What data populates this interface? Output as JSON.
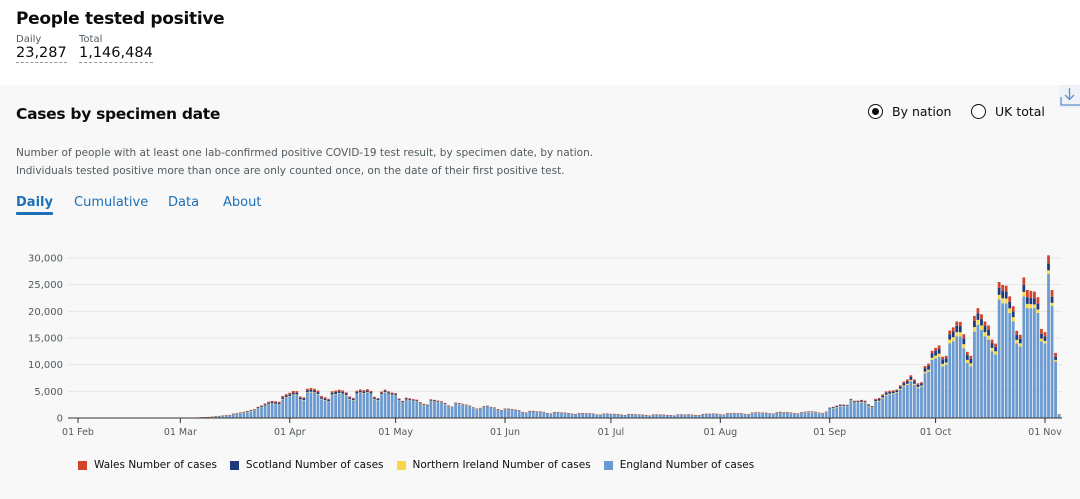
{
  "header": {
    "title": "People tested positive",
    "daily_label": "Daily",
    "daily_value": "23,287",
    "total_label": "Total",
    "total_value": "1,146,484"
  },
  "card": {
    "title": "Cases by specimen date",
    "description_1": "Number of people with at least one lab-confirmed positive COVID-19 test result, by specimen date, by nation.",
    "description_2": "Individuals tested positive more than once are only counted once, on the date of their first positive test.",
    "radios": [
      {
        "label": "By nation",
        "selected": true
      },
      {
        "label": "UK total",
        "selected": false
      }
    ],
    "tabs": [
      {
        "label": "Daily",
        "active": true
      },
      {
        "label": "Cumulative"
      },
      {
        "label": "Data"
      },
      {
        "label": "About"
      }
    ],
    "download_icon": "download-icon"
  },
  "colors": {
    "england": "#6a9ad0",
    "northern_ireland": "#f6d84a",
    "scotland": "#1d3a7a",
    "wales": "#d2432c",
    "accent": "#1d70b8"
  },
  "chart_data": {
    "type": "bar",
    "stacked": true,
    "x_start": "2020-01-30",
    "x_end": "2020-11-05",
    "x_ticks": [
      "01 Feb",
      "01 Mar",
      "01 Apr",
      "01 May",
      "01 Jun",
      "01 Jul",
      "01 Aug",
      "01 Sep",
      "01 Oct",
      "01 Nov"
    ],
    "y_ticks": [
      "0",
      "5,000",
      "10,000",
      "15,000",
      "20,000",
      "25,000",
      "30,000"
    ],
    "ylim": [
      0,
      30000
    ],
    "grid": true,
    "legend_position": "bottom",
    "legend": [
      "Wales Number of cases",
      "Scotland Number of cases",
      "Northern Ireland Number of cases",
      "England Number of cases"
    ],
    "series": [
      {
        "name": "England Number of cases",
        "values": [
          0,
          0,
          0,
          0,
          1,
          0,
          0,
          0,
          0,
          0,
          1,
          0,
          2,
          0,
          0,
          0,
          0,
          0,
          0,
          0,
          0,
          0,
          0,
          0,
          0,
          5,
          3,
          5,
          10,
          15,
          20,
          30,
          40,
          50,
          60,
          80,
          100,
          120,
          150,
          180,
          220,
          280,
          350,
          400,
          450,
          500,
          700,
          800,
          900,
          1000,
          1100,
          1300,
          1400,
          1800,
          2000,
          2300,
          2600,
          2700,
          2600,
          2500,
          3500,
          3800,
          4000,
          4300,
          4300,
          3400,
          3300,
          4700,
          4800,
          4700,
          4400,
          3500,
          3300,
          3100,
          4300,
          4400,
          4600,
          4500,
          4200,
          3500,
          3300,
          4500,
          4700,
          4600,
          4800,
          4500,
          3500,
          3300,
          4400,
          4800,
          4500,
          4300,
          4200,
          3300,
          2900,
          3400,
          3300,
          3200,
          3100,
          2700,
          2400,
          2300,
          3200,
          3100,
          3000,
          2900,
          2600,
          2200,
          2000,
          2700,
          2600,
          2500,
          2400,
          2200,
          1900,
          1700,
          1800,
          2100,
          2200,
          2000,
          1900,
          1600,
          1400,
          1700,
          1700,
          1600,
          1500,
          1400,
          1100,
          1000,
          1300,
          1300,
          1200,
          1200,
          1100,
          900,
          800,
          1100,
          1100,
          1000,
          1000,
          900,
          800,
          700,
          900,
          900,
          850,
          850,
          800,
          650,
          600,
          800,
          800,
          750,
          750,
          700,
          600,
          550,
          700,
          700,
          650,
          650,
          600,
          500,
          450,
          650,
          650,
          600,
          600,
          550,
          500,
          450,
          650,
          650,
          600,
          650,
          600,
          500,
          500,
          700,
          750,
          750,
          800,
          750,
          650,
          600,
          850,
          850,
          850,
          800,
          800,
          700,
          650,
          900,
          950,
          950,
          900,
          900,
          800,
          750,
          1000,
          1050,
          1000,
          1000,
          950,
          850,
          800,
          1000,
          1050,
          1100,
          1100,
          1050,
          900,
          850,
          1000,
          1700,
          1800,
          2000,
          2200,
          2200,
          2200,
          3200,
          2800,
          2800,
          2900,
          2800,
          2200,
          1900,
          3000,
          3100,
          3700,
          4200,
          4400,
          4500,
          4700,
          5300,
          5900,
          6200,
          6900,
          6200,
          5600,
          5900,
          8400,
          8700,
          10900,
          11200,
          11500,
          9700,
          10000,
          14000,
          14400,
          15300,
          15300,
          13100,
          10300,
          9700,
          16200,
          17500,
          16500,
          15300,
          14700,
          12500,
          11900,
          22200,
          21500,
          21500,
          19700,
          18100,
          14000,
          13400,
          22800,
          20600,
          20600,
          20600,
          19700,
          14400,
          14000,
          27000,
          21000,
          10600,
          600
        ]
      },
      {
        "name": "Northern Ireland Number of cases",
        "values": [
          0,
          0,
          0,
          0,
          0,
          0,
          0,
          0,
          0,
          0,
          0,
          0,
          0,
          0,
          0,
          0,
          0,
          0,
          0,
          0,
          0,
          0,
          0,
          0,
          0,
          0,
          0,
          0,
          0,
          0,
          0,
          0,
          0,
          0,
          0,
          0,
          0,
          1,
          1,
          2,
          3,
          4,
          5,
          6,
          8,
          10,
          12,
          15,
          18,
          20,
          25,
          30,
          35,
          40,
          45,
          50,
          55,
          60,
          65,
          70,
          80,
          90,
          100,
          110,
          100,
          90,
          80,
          110,
          120,
          110,
          100,
          90,
          80,
          70,
          100,
          110,
          100,
          95,
          90,
          80,
          70,
          90,
          95,
          90,
          85,
          80,
          70,
          60,
          80,
          75,
          70,
          65,
          60,
          50,
          40,
          55,
          50,
          45,
          40,
          35,
          30,
          25,
          40,
          35,
          30,
          28,
          25,
          20,
          18,
          25,
          22,
          20,
          18,
          15,
          12,
          10,
          12,
          15,
          12,
          10,
          8,
          6,
          5,
          8,
          8,
          7,
          6,
          5,
          4,
          3,
          6,
          6,
          5,
          5,
          4,
          3,
          2,
          5,
          5,
          4,
          4,
          3,
          2,
          2,
          4,
          4,
          3,
          3,
          2,
          2,
          2,
          4,
          4,
          4,
          4,
          3,
          3,
          2,
          4,
          4,
          4,
          3,
          3,
          2,
          2,
          4,
          4,
          4,
          4,
          3,
          2,
          2,
          4,
          4,
          4,
          5,
          4,
          3,
          3,
          6,
          8,
          8,
          10,
          8,
          6,
          5,
          15,
          20,
          25,
          22,
          20,
          15,
          12,
          25,
          30,
          30,
          28,
          25,
          20,
          18,
          35,
          40,
          38,
          35,
          30,
          25,
          20,
          40,
          45,
          50,
          48,
          45,
          40,
          35,
          50,
          60,
          70,
          80,
          90,
          80,
          70,
          100,
          110,
          120,
          130,
          120,
          100,
          90,
          130,
          140,
          150,
          160,
          150,
          140,
          130,
          180,
          200,
          220,
          240,
          220,
          200,
          180,
          300,
          350,
          400,
          500,
          550,
          450,
          400,
          700,
          750,
          800,
          780,
          750,
          600,
          550,
          850,
          900,
          850,
          800,
          750,
          650,
          600,
          900,
          950,
          900,
          850,
          800,
          650,
          600,
          850,
          800,
          750,
          700,
          650,
          500,
          450,
          700,
          600,
          300,
          20
        ]
      },
      {
        "name": "Scotland Number of cases",
        "values": [
          0,
          0,
          0,
          0,
          0,
          0,
          0,
          0,
          0,
          0,
          0,
          0,
          0,
          0,
          0,
          0,
          0,
          0,
          0,
          0,
          0,
          0,
          0,
          0,
          0,
          0,
          0,
          0,
          0,
          0,
          0,
          0,
          0,
          0,
          1,
          2,
          3,
          5,
          8,
          10,
          15,
          20,
          25,
          30,
          40,
          50,
          60,
          70,
          80,
          90,
          100,
          110,
          120,
          150,
          170,
          200,
          220,
          240,
          250,
          260,
          300,
          320,
          350,
          360,
          350,
          300,
          280,
          380,
          390,
          380,
          360,
          300,
          280,
          250,
          350,
          360,
          340,
          330,
          300,
          260,
          230,
          300,
          310,
          300,
          290,
          280,
          230,
          200,
          260,
          250,
          240,
          230,
          220,
          180,
          150,
          200,
          190,
          180,
          170,
          140,
          120,
          110,
          160,
          150,
          140,
          130,
          110,
          90,
          80,
          100,
          90,
          80,
          70,
          60,
          50,
          40,
          50,
          60,
          50,
          45,
          40,
          30,
          25,
          30,
          25,
          25,
          20,
          20,
          15,
          10,
          15,
          15,
          15,
          12,
          10,
          8,
          5,
          10,
          10,
          8,
          8,
          6,
          5,
          4,
          6,
          6,
          5,
          5,
          4,
          3,
          3,
          5,
          5,
          5,
          5,
          4,
          3,
          3,
          5,
          5,
          5,
          5,
          4,
          3,
          3,
          5,
          6,
          6,
          6,
          5,
          4,
          3,
          10,
          10,
          15,
          15,
          12,
          8,
          6,
          15,
          20,
          20,
          25,
          20,
          15,
          12,
          40,
          50,
          60,
          55,
          50,
          40,
          30,
          50,
          60,
          55,
          50,
          45,
          40,
          35,
          50,
          55,
          50,
          50,
          40,
          35,
          30,
          50,
          60,
          70,
          80,
          70,
          60,
          50,
          100,
          150,
          170,
          180,
          190,
          170,
          150,
          200,
          220,
          230,
          240,
          220,
          200,
          180,
          300,
          320,
          350,
          380,
          360,
          340,
          320,
          400,
          450,
          500,
          550,
          500,
          450,
          400,
          650,
          700,
          800,
          900,
          950,
          850,
          800,
          1000,
          1100,
          1200,
          1150,
          1100,
          900,
          850,
          1200,
          1250,
          1200,
          1150,
          1100,
          900,
          850,
          1300,
          1350,
          1300,
          1200,
          1100,
          900,
          850,
          1300,
          1250,
          1200,
          1150,
          1100,
          900,
          850,
          1300,
          1100,
          600,
          30
        ]
      },
      {
        "name": "Wales Number of cases",
        "values": [
          0,
          0,
          0,
          0,
          0,
          0,
          0,
          0,
          0,
          0,
          0,
          0,
          0,
          0,
          0,
          0,
          0,
          0,
          0,
          0,
          0,
          0,
          0,
          0,
          0,
          0,
          0,
          0,
          0,
          0,
          0,
          0,
          0,
          0,
          0,
          1,
          1,
          2,
          3,
          5,
          8,
          10,
          15,
          20,
          25,
          30,
          40,
          50,
          60,
          70,
          80,
          90,
          100,
          120,
          140,
          160,
          180,
          200,
          210,
          220,
          250,
          260,
          280,
          290,
          280,
          250,
          230,
          300,
          310,
          300,
          290,
          250,
          220,
          200,
          260,
          270,
          260,
          250,
          230,
          200,
          180,
          240,
          250,
          240,
          230,
          220,
          180,
          160,
          210,
          200,
          190,
          180,
          170,
          140,
          120,
          160,
          150,
          140,
          130,
          110,
          90,
          80,
          120,
          110,
          100,
          95,
          80,
          70,
          60,
          80,
          75,
          70,
          60,
          50,
          40,
          35,
          45,
          50,
          45,
          40,
          35,
          30,
          25,
          30,
          30,
          25,
          25,
          20,
          15,
          12,
          20,
          20,
          18,
          15,
          12,
          10,
          8,
          15,
          15,
          12,
          10,
          8,
          6,
          5,
          8,
          8,
          7,
          6,
          5,
          4,
          4,
          6,
          6,
          6,
          6,
          5,
          4,
          3,
          6,
          6,
          5,
          5,
          4,
          3,
          3,
          5,
          5,
          5,
          5,
          4,
          3,
          3,
          5,
          5,
          5,
          5,
          4,
          3,
          3,
          6,
          6,
          6,
          8,
          8,
          6,
          5,
          10,
          12,
          12,
          10,
          10,
          8,
          6,
          12,
          14,
          14,
          12,
          12,
          10,
          8,
          15,
          18,
          18,
          16,
          14,
          12,
          10,
          20,
          22,
          24,
          22,
          20,
          18,
          16,
          30,
          40,
          50,
          60,
          70,
          60,
          50,
          90,
          110,
          120,
          130,
          120,
          100,
          80,
          180,
          200,
          220,
          240,
          220,
          200,
          180,
          250,
          280,
          300,
          320,
          300,
          250,
          220,
          400,
          450,
          500,
          550,
          600,
          500,
          450,
          700,
          750,
          800,
          780,
          750,
          600,
          550,
          900,
          950,
          900,
          850,
          800,
          650,
          600,
          1100,
          1150,
          1100,
          1050,
          950,
          800,
          750,
          1400,
          1350,
          1300,
          1250,
          1200,
          900,
          800,
          1500,
          1300,
          700,
          40
        ]
      }
    ]
  }
}
